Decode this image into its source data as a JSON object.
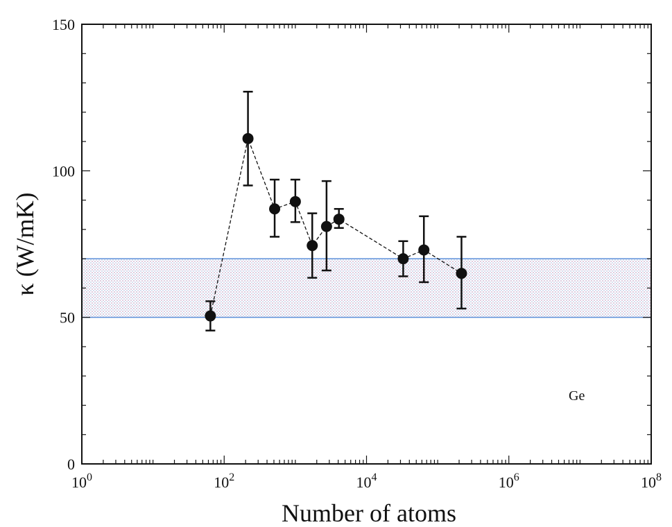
{
  "chart_data": {
    "type": "scatter",
    "xscale": "log",
    "xlim": [
      1,
      100000000
    ],
    "ylim": [
      0,
      150
    ],
    "xlabel": "Number of atoms",
    "ylabel": "κ (W/mK)",
    "xtick_labels": [
      {
        "value": 1,
        "base": "10",
        "exp": "0"
      },
      {
        "value": 100,
        "base": "10",
        "exp": "2"
      },
      {
        "value": 10000,
        "base": "10",
        "exp": "4"
      },
      {
        "value": 1000000,
        "base": "10",
        "exp": "6"
      },
      {
        "value": 100000000,
        "base": "10",
        "exp": "8"
      }
    ],
    "yticks": [
      0,
      50,
      100,
      150
    ],
    "ytick_labels": [
      "0",
      "50",
      "100",
      "150"
    ],
    "annotation": "Ge",
    "band": {
      "ymin": 50,
      "ymax": 70,
      "color": "#5b8fd9",
      "fill": "#e6dbe6"
    },
    "series": [
      {
        "x": [
          64,
          216,
          512,
          1000,
          1728,
          2744,
          4096,
          32768,
          64000,
          216000
        ],
        "y": [
          50.5,
          111,
          87,
          89.5,
          74.5,
          81,
          83.5,
          70,
          73,
          65
        ],
        "err_low": [
          45.5,
          95,
          77.5,
          82.5,
          63.5,
          66,
          80.5,
          64,
          62,
          53
        ],
        "err_high": [
          55.5,
          127,
          97,
          97,
          85.5,
          96.5,
          87,
          76,
          84.5,
          77.5
        ]
      }
    ]
  }
}
